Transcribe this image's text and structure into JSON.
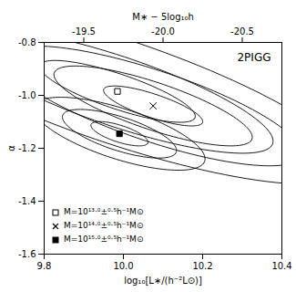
{
  "chart_data": {
    "type": "ellipse_contours",
    "title": "2PIGG",
    "xlabel": "log₁₀[L∗/(h⁻²L⊙)]",
    "x2label": "M∗ − 5log₁₀h",
    "ylabel": "α",
    "xlim": [
      9.8,
      10.4
    ],
    "ylim": [
      -1.6,
      -0.8
    ],
    "xticks": [
      9.8,
      {
        "value": 10.0,
        "label": "10.0"
      },
      10.2,
      10.4
    ],
    "x2ticks": [
      {
        "value": 9.9,
        "label": "-19.5"
      },
      {
        "value": 10.1,
        "label": "-20.0"
      },
      {
        "value": 10.3,
        "label": "-20.5"
      }
    ],
    "yticks": [
      -0.8,
      {
        "value": -1.0,
        "label": "-1.0"
      },
      -1.2,
      -1.4,
      -1.6
    ],
    "sigma_scales": [
      1.0,
      2.0,
      3.0
    ],
    "color": "black",
    "legend": "lower left",
    "series": [
      {
        "name": "M=10¹³·⁰±⁰·⁵h⁻¹M⊙",
        "marker": "square-open",
        "center_x": 9.985,
        "center_y": -0.985,
        "a": 0.22,
        "b": 0.062,
        "angle_deg": -28
      },
      {
        "name": "M=10¹⁴·⁰±⁰·⁵h⁻¹M⊙",
        "marker": "x",
        "center_x": 10.075,
        "center_y": -1.04,
        "a": 0.14,
        "b": 0.042,
        "angle_deg": -28
      },
      {
        "name": "M=10¹⁵·⁰±⁰·⁵h⁻¹M⊙",
        "marker": "square",
        "center_x": 9.99,
        "center_y": -1.145,
        "a": 0.08,
        "b": 0.03,
        "angle_deg": -28
      }
    ]
  }
}
